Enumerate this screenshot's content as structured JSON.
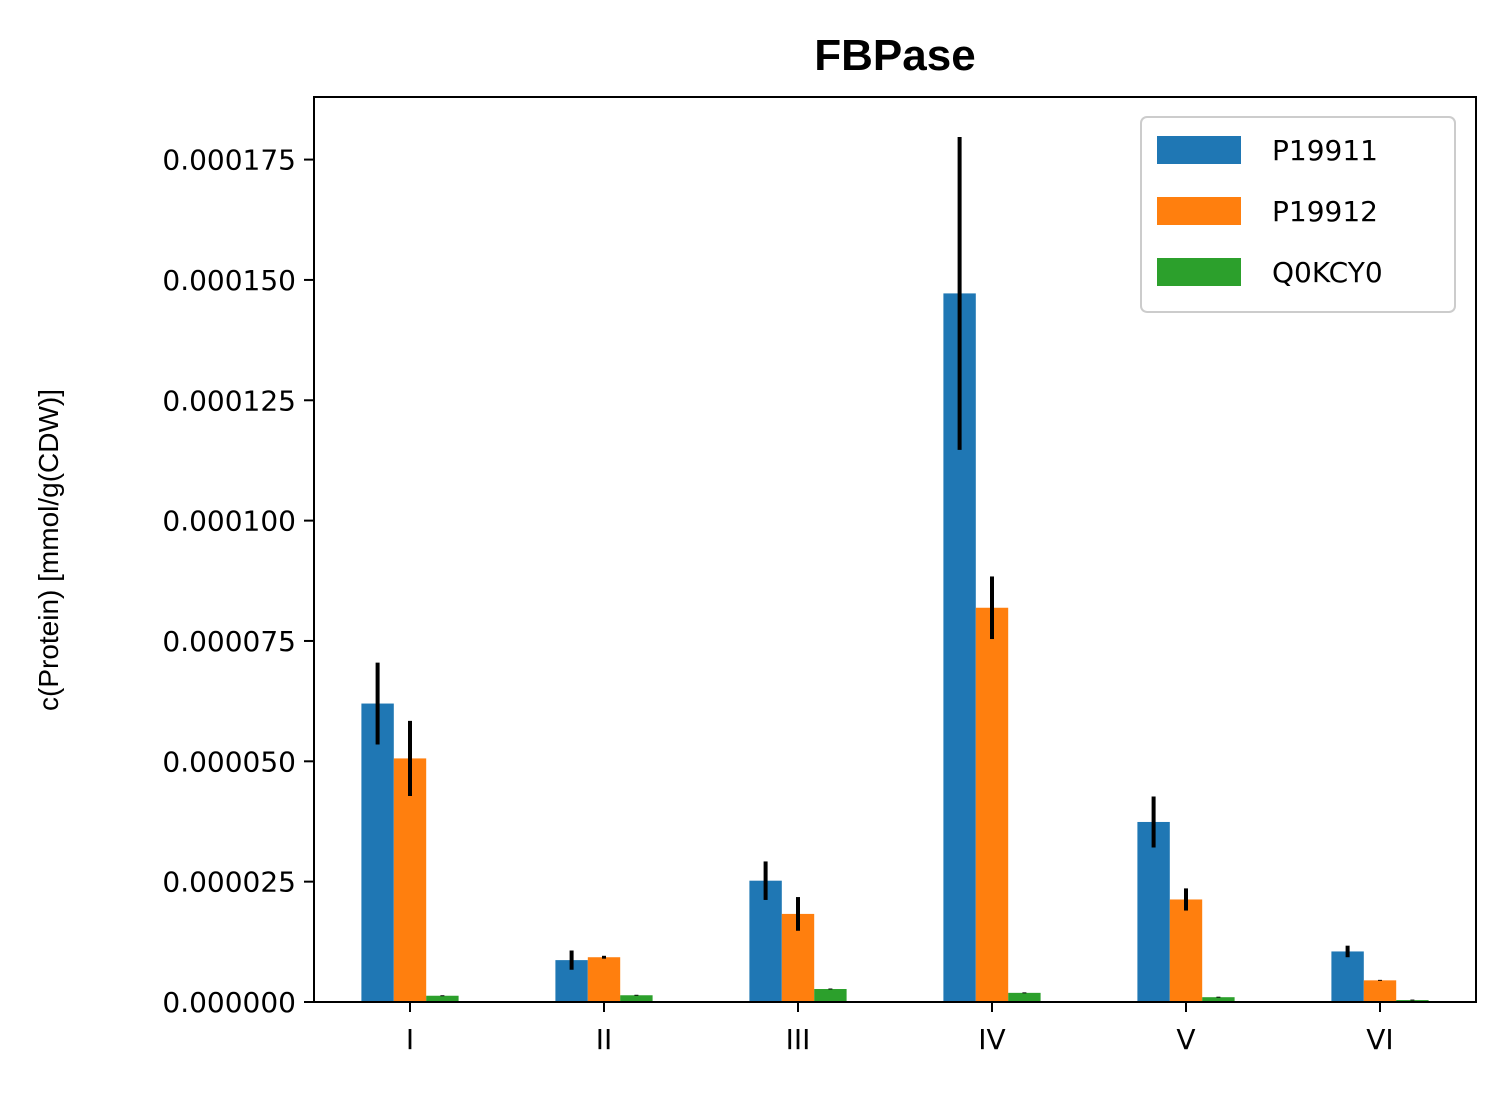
{
  "chart_data": {
    "type": "bar",
    "title": "FBPase",
    "xlabel": "",
    "ylabel": "c(Protein) [mmol/g(CDW)]",
    "categories": [
      "I",
      "II",
      "III",
      "IV",
      "V",
      "VI"
    ],
    "ylim": [
      0,
      0.000188
    ],
    "yticks": [
      {
        "value": 0,
        "label": "0.000000"
      },
      {
        "value": 2.5e-05,
        "label": "0.000025"
      },
      {
        "value": 5e-05,
        "label": "0.000050"
      },
      {
        "value": 7.5e-05,
        "label": "0.000075"
      },
      {
        "value": 0.0001,
        "label": "0.000100"
      },
      {
        "value": 0.000125,
        "label": "0.000125"
      },
      {
        "value": 0.00015,
        "label": "0.000150"
      },
      {
        "value": 0.000175,
        "label": "0.000175"
      }
    ],
    "series": [
      {
        "name": "P19911",
        "color": "#1f77b4",
        "values": [
          6.2e-05,
          8.7e-06,
          2.52e-05,
          0.0001472,
          3.74e-05,
          1.05e-05
        ],
        "errors": [
          8.5e-06,
          2e-06,
          4e-06,
          3.25e-05,
          5.3e-06,
          1.2e-06
        ]
      },
      {
        "name": "P19912",
        "color": "#ff7f0e",
        "values": [
          5.06e-05,
          9.3e-06,
          1.83e-05,
          8.19e-05,
          2.13e-05,
          4.5e-06
        ],
        "errors": [
          7.8e-06,
          3e-07,
          3.5e-06,
          6.5e-06,
          2.3e-06,
          1e-07
        ]
      },
      {
        "name": "Q0KCY0",
        "color": "#2ca02c",
        "values": [
          1.3e-06,
          1.4e-06,
          2.7e-06,
          1.9e-06,
          1e-06,
          4e-07
        ],
        "errors": [
          1e-07,
          1e-07,
          1e-07,
          1e-07,
          1e-07,
          1e-07
        ]
      }
    ],
    "legend_position": "top-right",
    "grid": false
  }
}
